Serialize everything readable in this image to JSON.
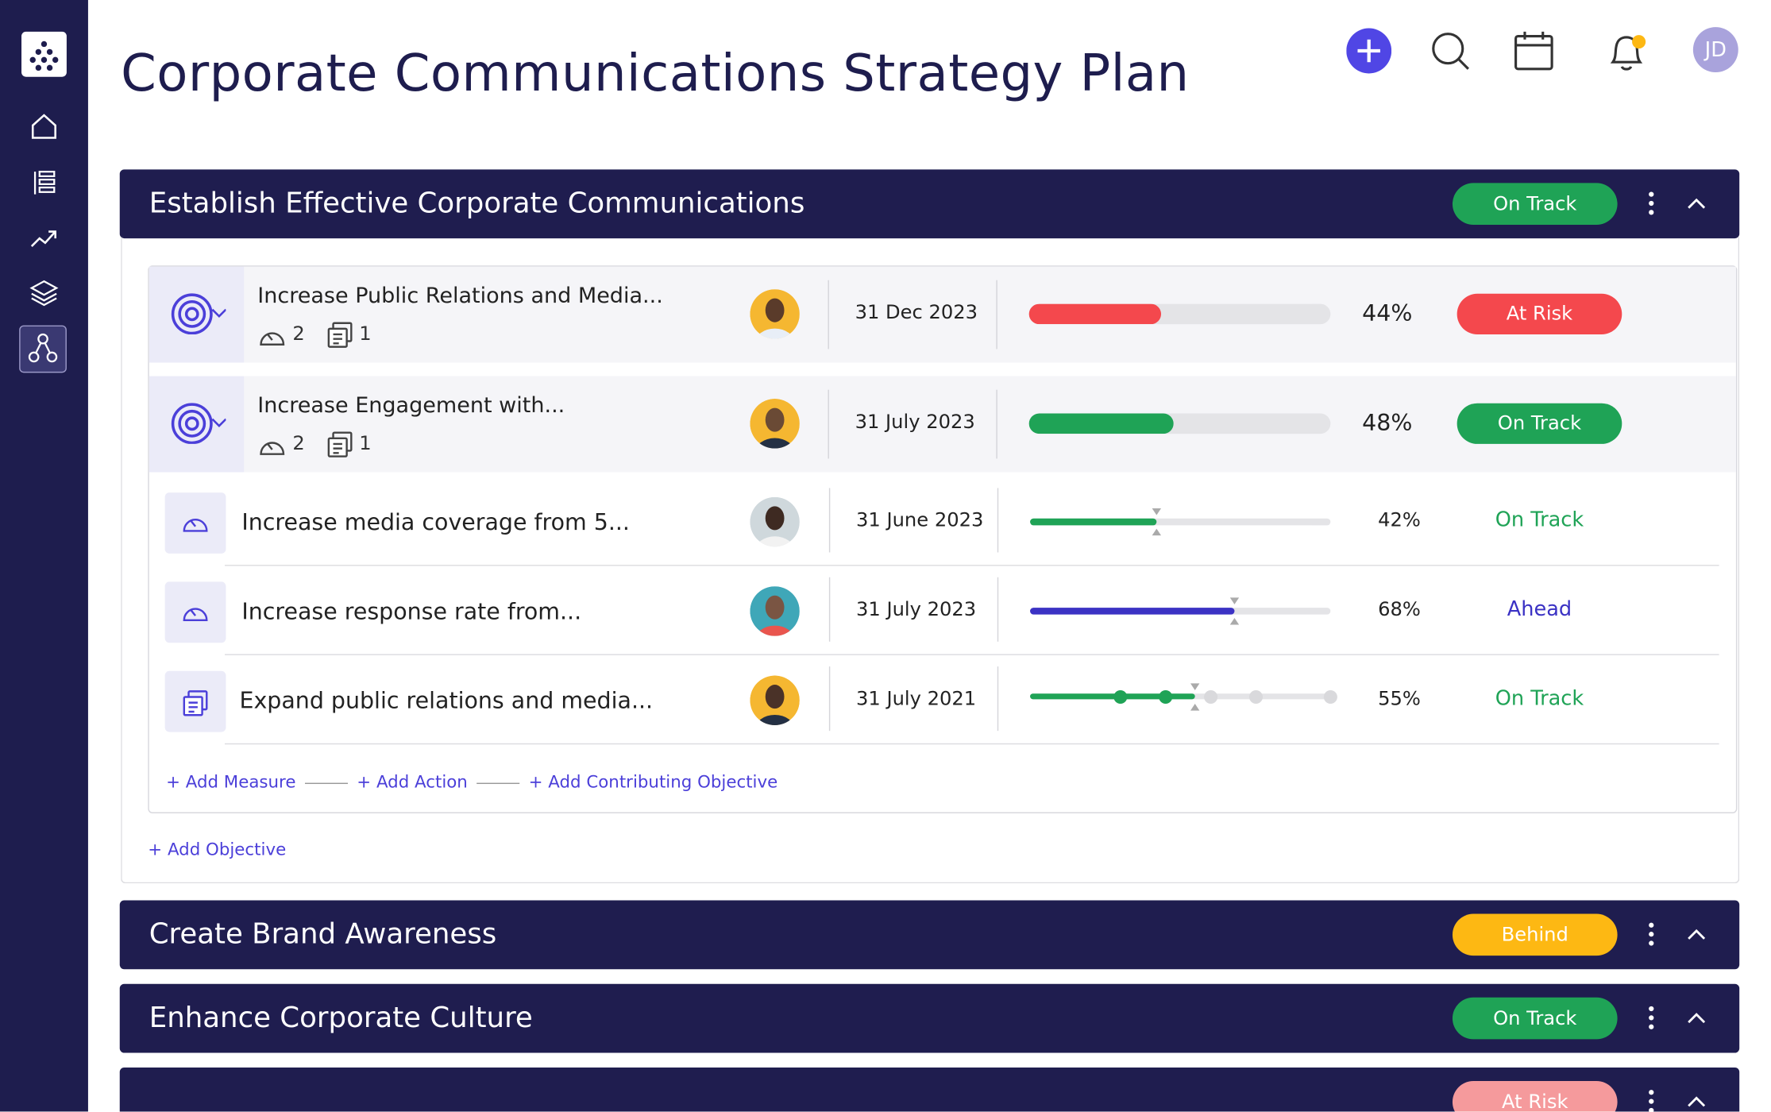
{
  "header": {
    "title": "Corporate Communications Strategy Plan",
    "avatar": "JD"
  },
  "sections": [
    {
      "title": "Establish Effective Corporate Communications",
      "status": "On Track",
      "status_color": "#1fa356",
      "objectives": [
        {
          "name": "Increase Public Relations and Media...",
          "measures": 2,
          "actions": 1,
          "date": "31 Dec 2023",
          "progress": "44%",
          "bar_color": "#f4484d",
          "status": "At Risk",
          "status_color": "#f4484d"
        },
        {
          "name": "Increase Engagement with...",
          "measures": 2,
          "actions": 1,
          "date": "31 July 2023",
          "progress": "48%",
          "bar_color": "#1fa356",
          "status": "On Track",
          "status_color": "#1fa356",
          "items": [
            {
              "kind": "measure",
              "name": "Increase media coverage from 5...",
              "date": "31 June 2023",
              "progress": "42%",
              "bar_color": "#1fa356",
              "status": "On Track",
              "status_color": "#1fa356"
            },
            {
              "kind": "measure",
              "name": "Increase response rate from...",
              "date": "31 July 2023",
              "progress": "68%",
              "bar_color": "#3b32c4",
              "status": "Ahead",
              "status_color": "#3b32c4"
            },
            {
              "kind": "action",
              "name": "Expand public relations and media...",
              "date": "31 July 2021",
              "progress": "55%",
              "bar_color": "#1fa356",
              "status": "On Track",
              "status_color": "#1fa356"
            }
          ]
        }
      ],
      "links": [
        "+ Add Measure",
        "+ Add Action",
        "+ Add Contributing Objective"
      ],
      "add_objective": "+ Add Objective"
    },
    {
      "title": "Create Brand Awareness",
      "status": "Behind",
      "status_color": "#fdb813"
    },
    {
      "title": "Enhance Corporate Culture",
      "status": "On Track",
      "status_color": "#1fa356"
    },
    {
      "status": "At Risk",
      "status_color": "#f59a9c"
    }
  ]
}
